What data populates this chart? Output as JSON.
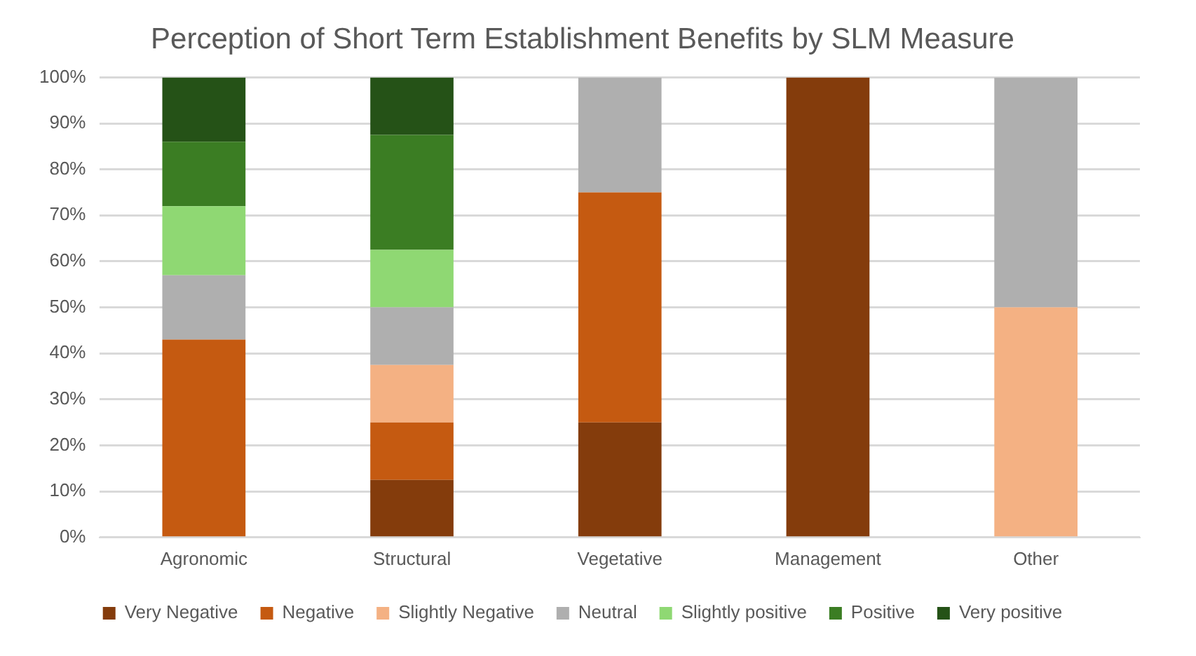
{
  "chart_data": {
    "type": "bar",
    "title": "Perception of Short Term Establishment Benefits by SLM Measure",
    "stacked": true,
    "categories": [
      "Agronomic",
      "Structural",
      "Vegetative",
      "Management",
      "Other"
    ],
    "series": [
      {
        "name": "Very Negative",
        "color": "#843c0c",
        "values": [
          0,
          12.5,
          25,
          100,
          0
        ]
      },
      {
        "name": "Negative",
        "color": "#c55a11",
        "values": [
          43,
          12.5,
          50,
          0,
          0
        ]
      },
      {
        "name": "Slightly Negative",
        "color": "#f4b183",
        "values": [
          0,
          12.5,
          0,
          0,
          50
        ]
      },
      {
        "name": "Neutral",
        "color": "#afafaf",
        "values": [
          14,
          12.5,
          25,
          0,
          50
        ]
      },
      {
        "name": "Slightly positive",
        "color": "#8fd873",
        "values": [
          15,
          12.5,
          0,
          0,
          0
        ]
      },
      {
        "name": "Positive",
        "color": "#3b7d23",
        "values": [
          14,
          25,
          0,
          0,
          0
        ]
      },
      {
        "name": "Very positive",
        "color": "#255217",
        "values": [
          14,
          12.5,
          0,
          0,
          0
        ]
      }
    ],
    "ylim": [
      0,
      100
    ],
    "yticks": [
      {
        "value": 0,
        "label": "0%"
      },
      {
        "value": 10,
        "label": "10%"
      },
      {
        "value": 20,
        "label": "20%"
      },
      {
        "value": 30,
        "label": "30%"
      },
      {
        "value": 40,
        "label": "40%"
      },
      {
        "value": 50,
        "label": "50%"
      },
      {
        "value": 60,
        "label": "60%"
      },
      {
        "value": 70,
        "label": "70%"
      },
      {
        "value": 80,
        "label": "80%"
      },
      {
        "value": 90,
        "label": "90%"
      },
      {
        "value": 100,
        "label": "100%"
      }
    ],
    "grid": "y",
    "legend": "bottom"
  }
}
